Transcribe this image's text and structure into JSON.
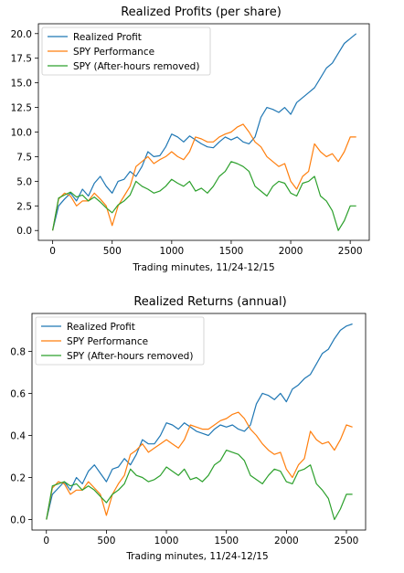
{
  "colors": {
    "blue": "#1f77b4",
    "orange": "#ff7f0e",
    "green": "#2ca02c"
  },
  "chart_data": [
    {
      "type": "line",
      "title": "Realized Profits (per share)",
      "xlabel": "Trading minutes, 11/24-12/15",
      "ylabel": "",
      "xlim": [
        -120,
        2660
      ],
      "ylim": [
        -1.0,
        21.0
      ],
      "xticks": [
        0,
        500,
        1000,
        1500,
        2000,
        2500
      ],
      "yticks": [
        "0.0",
        "2.5",
        "5.0",
        "7.5",
        "10.0",
        "12.5",
        "15.0",
        "17.5",
        "20.0"
      ],
      "legend_position": "top-left",
      "grid": false,
      "series": [
        {
          "name": "Realized Profit",
          "color": "#1f77b4",
          "x": [
            0,
            50,
            100,
            150,
            200,
            250,
            300,
            350,
            400,
            450,
            500,
            550,
            600,
            650,
            700,
            750,
            800,
            850,
            900,
            950,
            1000,
            1050,
            1100,
            1150,
            1200,
            1250,
            1300,
            1350,
            1400,
            1450,
            1500,
            1550,
            1600,
            1650,
            1700,
            1750,
            1800,
            1850,
            1900,
            1950,
            2000,
            2050,
            2100,
            2150,
            2200,
            2250,
            2300,
            2350,
            2400,
            2450,
            2500,
            2550
          ],
          "y": [
            0.0,
            2.5,
            3.2,
            3.8,
            3.0,
            4.2,
            3.5,
            4.8,
            5.5,
            4.5,
            3.8,
            5.0,
            5.2,
            6.0,
            5.5,
            6.5,
            8.0,
            7.5,
            7.6,
            8.5,
            9.8,
            9.5,
            9.0,
            9.6,
            9.2,
            8.8,
            8.5,
            8.4,
            9.0,
            9.5,
            9.2,
            9.5,
            9.0,
            8.8,
            9.5,
            11.5,
            12.5,
            12.3,
            12.0,
            12.5,
            11.8,
            13.0,
            13.5,
            14.0,
            14.5,
            15.5,
            16.5,
            17.0,
            18.0,
            19.0,
            19.5,
            20.0
          ]
        },
        {
          "name": "SPY Performance",
          "color": "#ff7f0e",
          "x": [
            0,
            50,
            100,
            150,
            200,
            250,
            300,
            350,
            400,
            450,
            500,
            550,
            600,
            650,
            700,
            750,
            800,
            850,
            900,
            950,
            1000,
            1050,
            1100,
            1150,
            1200,
            1250,
            1300,
            1350,
            1400,
            1450,
            1500,
            1550,
            1600,
            1650,
            1700,
            1750,
            1800,
            1850,
            1900,
            1950,
            2000,
            2050,
            2100,
            2150,
            2200,
            2250,
            2300,
            2350,
            2400,
            2450,
            2500,
            2550
          ],
          "y": [
            0.0,
            3.2,
            3.8,
            3.5,
            2.5,
            3.0,
            3.0,
            3.8,
            3.2,
            2.5,
            0.5,
            2.5,
            3.5,
            4.5,
            6.5,
            7.0,
            7.5,
            6.8,
            7.2,
            7.5,
            8.0,
            7.5,
            7.2,
            8.0,
            9.5,
            9.3,
            9.0,
            9.0,
            9.5,
            9.8,
            10.0,
            10.5,
            10.8,
            10.0,
            9.0,
            8.5,
            7.5,
            7.0,
            6.5,
            6.8,
            5.0,
            4.2,
            5.5,
            6.0,
            8.8,
            8.0,
            7.5,
            7.8,
            7.0,
            8.0,
            9.5,
            9.5
          ]
        },
        {
          "name": "SPY (After-hours removed)",
          "color": "#2ca02c",
          "x": [
            0,
            50,
            100,
            150,
            200,
            250,
            300,
            350,
            400,
            450,
            500,
            550,
            600,
            650,
            700,
            750,
            800,
            850,
            900,
            950,
            1000,
            1050,
            1100,
            1150,
            1200,
            1250,
            1300,
            1350,
            1400,
            1450,
            1500,
            1550,
            1600,
            1650,
            1700,
            1750,
            1800,
            1850,
            1900,
            1950,
            2000,
            2050,
            2100,
            2150,
            2200,
            2250,
            2300,
            2350,
            2400,
            2450,
            2500,
            2550
          ],
          "y": [
            0.0,
            3.3,
            3.6,
            3.9,
            3.4,
            3.6,
            3.0,
            3.4,
            2.9,
            2.3,
            1.8,
            2.6,
            3.0,
            3.6,
            5.0,
            4.5,
            4.2,
            3.8,
            4.0,
            4.5,
            5.2,
            4.8,
            4.5,
            5.0,
            4.0,
            4.3,
            3.8,
            4.5,
            5.5,
            6.0,
            7.0,
            6.8,
            6.5,
            6.0,
            4.5,
            4.0,
            3.5,
            4.5,
            5.0,
            4.8,
            3.8,
            3.5,
            4.8,
            5.0,
            5.5,
            3.5,
            3.0,
            2.0,
            0.0,
            1.0,
            2.5,
            2.5
          ]
        }
      ]
    },
    {
      "type": "line",
      "title": "Realized Returns (annual)",
      "xlabel": "Trading minutes, 11/24-12/15",
      "ylabel": "",
      "xlim": [
        -120,
        2660
      ],
      "ylim": [
        -0.05,
        0.98
      ],
      "xticks": [
        0,
        500,
        1000,
        1500,
        2000,
        2500
      ],
      "yticks": [
        "0.0",
        "0.2",
        "0.4",
        "0.6",
        "0.8"
      ],
      "legend_position": "top-left",
      "grid": false,
      "series": [
        {
          "name": "Realized Profit",
          "color": "#1f77b4",
          "x": [
            0,
            50,
            100,
            150,
            200,
            250,
            300,
            350,
            400,
            450,
            500,
            550,
            600,
            650,
            700,
            750,
            800,
            850,
            900,
            950,
            1000,
            1050,
            1100,
            1150,
            1200,
            1250,
            1300,
            1350,
            1400,
            1450,
            1500,
            1550,
            1600,
            1650,
            1700,
            1750,
            1800,
            1850,
            1900,
            1950,
            2000,
            2050,
            2100,
            2150,
            2200,
            2250,
            2300,
            2350,
            2400,
            2450,
            2500,
            2550
          ],
          "y": [
            0.0,
            0.12,
            0.15,
            0.18,
            0.14,
            0.2,
            0.17,
            0.23,
            0.26,
            0.22,
            0.18,
            0.24,
            0.25,
            0.29,
            0.26,
            0.31,
            0.38,
            0.36,
            0.36,
            0.4,
            0.46,
            0.45,
            0.43,
            0.46,
            0.44,
            0.42,
            0.41,
            0.4,
            0.43,
            0.45,
            0.44,
            0.45,
            0.43,
            0.42,
            0.45,
            0.55,
            0.6,
            0.59,
            0.57,
            0.6,
            0.56,
            0.62,
            0.64,
            0.67,
            0.69,
            0.74,
            0.79,
            0.81,
            0.86,
            0.9,
            0.92,
            0.93
          ]
        },
        {
          "name": "SPY Performance",
          "color": "#ff7f0e",
          "x": [
            0,
            50,
            100,
            150,
            200,
            250,
            300,
            350,
            400,
            450,
            500,
            550,
            600,
            650,
            700,
            750,
            800,
            850,
            900,
            950,
            1000,
            1050,
            1100,
            1150,
            1200,
            1250,
            1300,
            1350,
            1400,
            1450,
            1500,
            1550,
            1600,
            1650,
            1700,
            1750,
            1800,
            1850,
            1900,
            1950,
            2000,
            2050,
            2100,
            2150,
            2200,
            2250,
            2300,
            2350,
            2400,
            2450,
            2500,
            2550
          ],
          "y": [
            0.0,
            0.15,
            0.18,
            0.17,
            0.12,
            0.14,
            0.14,
            0.18,
            0.15,
            0.12,
            0.02,
            0.12,
            0.17,
            0.21,
            0.31,
            0.33,
            0.36,
            0.32,
            0.34,
            0.36,
            0.38,
            0.36,
            0.34,
            0.38,
            0.45,
            0.44,
            0.43,
            0.43,
            0.45,
            0.47,
            0.48,
            0.5,
            0.51,
            0.48,
            0.43,
            0.4,
            0.36,
            0.33,
            0.31,
            0.32,
            0.24,
            0.2,
            0.26,
            0.29,
            0.42,
            0.38,
            0.36,
            0.37,
            0.33,
            0.38,
            0.45,
            0.44
          ]
        },
        {
          "name": "SPY (After-hours removed)",
          "color": "#2ca02c",
          "x": [
            0,
            50,
            100,
            150,
            200,
            250,
            300,
            350,
            400,
            450,
            500,
            550,
            600,
            650,
            700,
            750,
            800,
            850,
            900,
            950,
            1000,
            1050,
            1100,
            1150,
            1200,
            1250,
            1300,
            1350,
            1400,
            1450,
            1500,
            1550,
            1600,
            1650,
            1700,
            1750,
            1800,
            1850,
            1900,
            1950,
            2000,
            2050,
            2100,
            2150,
            2200,
            2250,
            2300,
            2350,
            2400,
            2450,
            2500,
            2550
          ],
          "y": [
            0.0,
            0.16,
            0.17,
            0.18,
            0.16,
            0.17,
            0.14,
            0.16,
            0.14,
            0.11,
            0.08,
            0.12,
            0.14,
            0.17,
            0.24,
            0.21,
            0.2,
            0.18,
            0.19,
            0.21,
            0.25,
            0.23,
            0.21,
            0.24,
            0.19,
            0.2,
            0.18,
            0.21,
            0.26,
            0.28,
            0.33,
            0.32,
            0.31,
            0.28,
            0.21,
            0.19,
            0.17,
            0.21,
            0.24,
            0.23,
            0.18,
            0.17,
            0.23,
            0.24,
            0.26,
            0.17,
            0.14,
            0.1,
            0.0,
            0.05,
            0.12,
            0.12
          ]
        }
      ]
    }
  ]
}
